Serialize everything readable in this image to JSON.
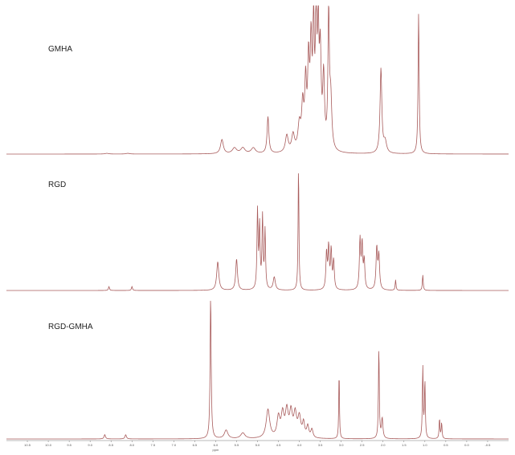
{
  "chart_data": {
    "type": "line",
    "title": "",
    "xlabel": "ppm",
    "ylabel": "",
    "x_reversed": true,
    "xlim": [
      11.0,
      -1.0
    ],
    "ylim": [
      0,
      100
    ],
    "grid": false,
    "color": "#a85b5b",
    "x_ticks": [
      "10.5",
      "10.0",
      "9.5",
      "9.0",
      "8.5",
      "8.0",
      "7.5",
      "7.0",
      "6.5",
      "6.0",
      "5.5",
      "5.0",
      "4.5",
      "4.0",
      "3.5",
      "3.0",
      "2.5",
      "2.0",
      "1.5",
      "1.0",
      "0.5",
      "0.0",
      "-0.5"
    ],
    "panels": [
      {
        "label": "GMHA",
        "peaks": [
          [
            8.6,
            0.5,
            0.05
          ],
          [
            8.1,
            0.5,
            0.05
          ],
          [
            5.85,
            10,
            0.04
          ],
          [
            5.55,
            4,
            0.06
          ],
          [
            5.35,
            4,
            0.06
          ],
          [
            5.1,
            4,
            0.06
          ],
          [
            4.75,
            26,
            0.025
          ],
          [
            4.3,
            12,
            0.04
          ],
          [
            4.15,
            12,
            0.04
          ],
          [
            4.0,
            18,
            0.04
          ],
          [
            3.92,
            30,
            0.03
          ],
          [
            3.85,
            45,
            0.025
          ],
          [
            3.78,
            58,
            0.025
          ],
          [
            3.72,
            70,
            0.025
          ],
          [
            3.66,
            85,
            0.02
          ],
          [
            3.6,
            92,
            0.02
          ],
          [
            3.55,
            80,
            0.02
          ],
          [
            3.5,
            65,
            0.025
          ],
          [
            3.42,
            50,
            0.025
          ],
          [
            3.3,
            95,
            0.02
          ],
          [
            3.25,
            35,
            0.03
          ],
          [
            2.05,
            60,
            0.025
          ],
          [
            1.95,
            8,
            0.04
          ],
          [
            1.15,
            100,
            0.015
          ]
        ]
      },
      {
        "label": "RGD",
        "peaks": [
          [
            8.55,
            3,
            0.015
          ],
          [
            8.0,
            3,
            0.015
          ],
          [
            5.95,
            22,
            0.03
          ],
          [
            5.5,
            24,
            0.025
          ],
          [
            5.0,
            60,
            0.015
          ],
          [
            4.95,
            48,
            0.015
          ],
          [
            4.88,
            55,
            0.015
          ],
          [
            4.82,
            45,
            0.015
          ],
          [
            4.6,
            10,
            0.03
          ],
          [
            4.02,
            95,
            0.012
          ],
          [
            3.35,
            28,
            0.018
          ],
          [
            3.3,
            32,
            0.018
          ],
          [
            3.24,
            30,
            0.018
          ],
          [
            3.18,
            22,
            0.018
          ],
          [
            2.55,
            38,
            0.018
          ],
          [
            2.5,
            34,
            0.018
          ],
          [
            2.45,
            22,
            0.018
          ],
          [
            2.15,
            32,
            0.02
          ],
          [
            2.1,
            26,
            0.02
          ],
          [
            1.7,
            8,
            0.012
          ],
          [
            1.05,
            12,
            0.012
          ]
        ]
      },
      {
        "label": "RGD-GMHA",
        "peaks": [
          [
            8.65,
            3,
            0.02
          ],
          [
            8.15,
            3,
            0.02
          ],
          [
            6.12,
            100,
            0.015
          ],
          [
            5.75,
            6,
            0.05
          ],
          [
            5.35,
            4,
            0.06
          ],
          [
            4.75,
            20,
            0.05
          ],
          [
            4.5,
            14,
            0.04
          ],
          [
            4.4,
            16,
            0.04
          ],
          [
            4.3,
            18,
            0.04
          ],
          [
            4.2,
            17,
            0.04
          ],
          [
            4.1,
            16,
            0.04
          ],
          [
            4.0,
            14,
            0.04
          ],
          [
            3.9,
            10,
            0.03
          ],
          [
            3.8,
            8,
            0.03
          ],
          [
            3.7,
            6,
            0.03
          ],
          [
            3.05,
            48,
            0.01
          ],
          [
            2.1,
            64,
            0.012
          ],
          [
            2.02,
            14,
            0.02
          ],
          [
            1.05,
            50,
            0.012
          ],
          [
            1.0,
            40,
            0.012
          ],
          [
            0.65,
            14,
            0.012
          ],
          [
            0.6,
            11,
            0.012
          ]
        ]
      }
    ]
  }
}
